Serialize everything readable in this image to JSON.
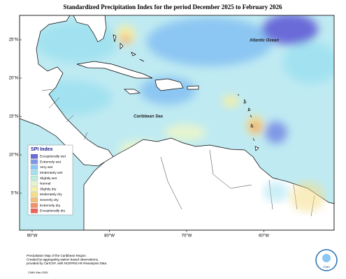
{
  "map": {
    "title": "Standardized Precipitation Index for the period December 2025 to February 2026",
    "lat_ticks": [
      "25°N",
      "20°N",
      "15°N",
      "10°N",
      "5°N"
    ],
    "lon_ticks": [
      "90°W",
      "80°W",
      "70°W",
      "60°W"
    ],
    "labels": {
      "atlantic": "Atlantic Ocean",
      "caribbean": "Caribbean Sea"
    },
    "legend": {
      "title": "SPI Index",
      "items": [
        {
          "name": "Exceptionally wet",
          "color": "#6a6ad8"
        },
        {
          "name": "Extremely wet",
          "color": "#7f98e6"
        },
        {
          "name": "Very wet",
          "color": "#8cc6f2"
        },
        {
          "name": "Moderately wet",
          "color": "#a2e2f0"
        },
        {
          "name": "Slightly wet",
          "color": "#bdeedb"
        },
        {
          "name": "Normal",
          "color": "#e6f5cf"
        },
        {
          "name": "Slightly dry",
          "color": "#f4f0a6"
        },
        {
          "name": "Moderately dry",
          "color": "#f5dd88"
        },
        {
          "name": "Severely dry",
          "color": "#f4bd78"
        },
        {
          "name": "Extremely dry",
          "color": "#f19368"
        },
        {
          "name": "Exceptionally dry",
          "color": "#ec6357"
        }
      ]
    },
    "footer": [
      "Precipitation Map of the Caribbean Region.",
      "Created by aggregating station based observations,",
      "provided by CariCOF, with NCEP/NCAR Reanalysis Data."
    ],
    "credit": "CIMH Mar-2026",
    "logo": "CIMH"
  }
}
